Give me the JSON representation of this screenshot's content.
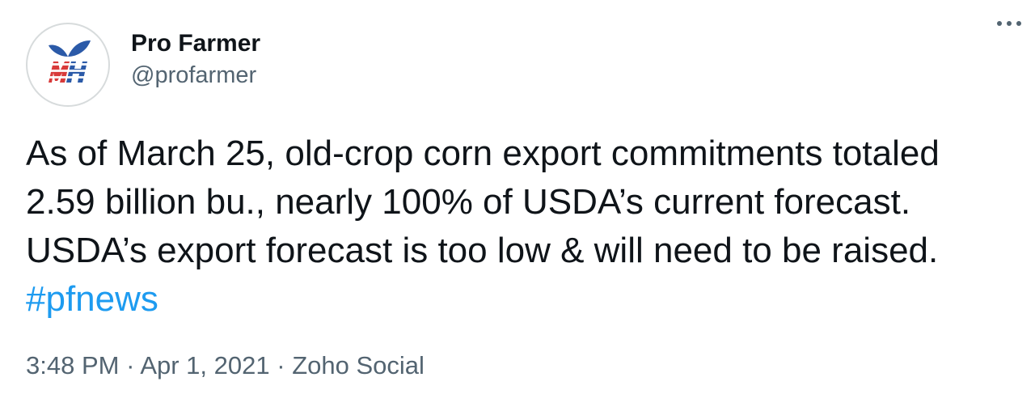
{
  "author": {
    "display_name": "Pro Farmer",
    "handle": "@profarmer",
    "avatar_icon": "pro-farmer-logo-icon"
  },
  "more_icon": "more-options-icon",
  "tweet": {
    "text": "As of March 25, old-crop corn export commitments totaled 2.59 billion bu., nearly 100% of USDA’s current forecast. USDA’s export forecast is too low & will need to be raised. ",
    "hashtag": "#pfnews"
  },
  "meta": {
    "time": "3:48 PM",
    "separator": "·",
    "date": "Apr 1, 2021",
    "source": "Zoho Social"
  },
  "colors": {
    "link": "#1d9bf0",
    "secondary": "#536471",
    "logo_blue": "#2b5aa8",
    "logo_red": "#d83a3a"
  }
}
